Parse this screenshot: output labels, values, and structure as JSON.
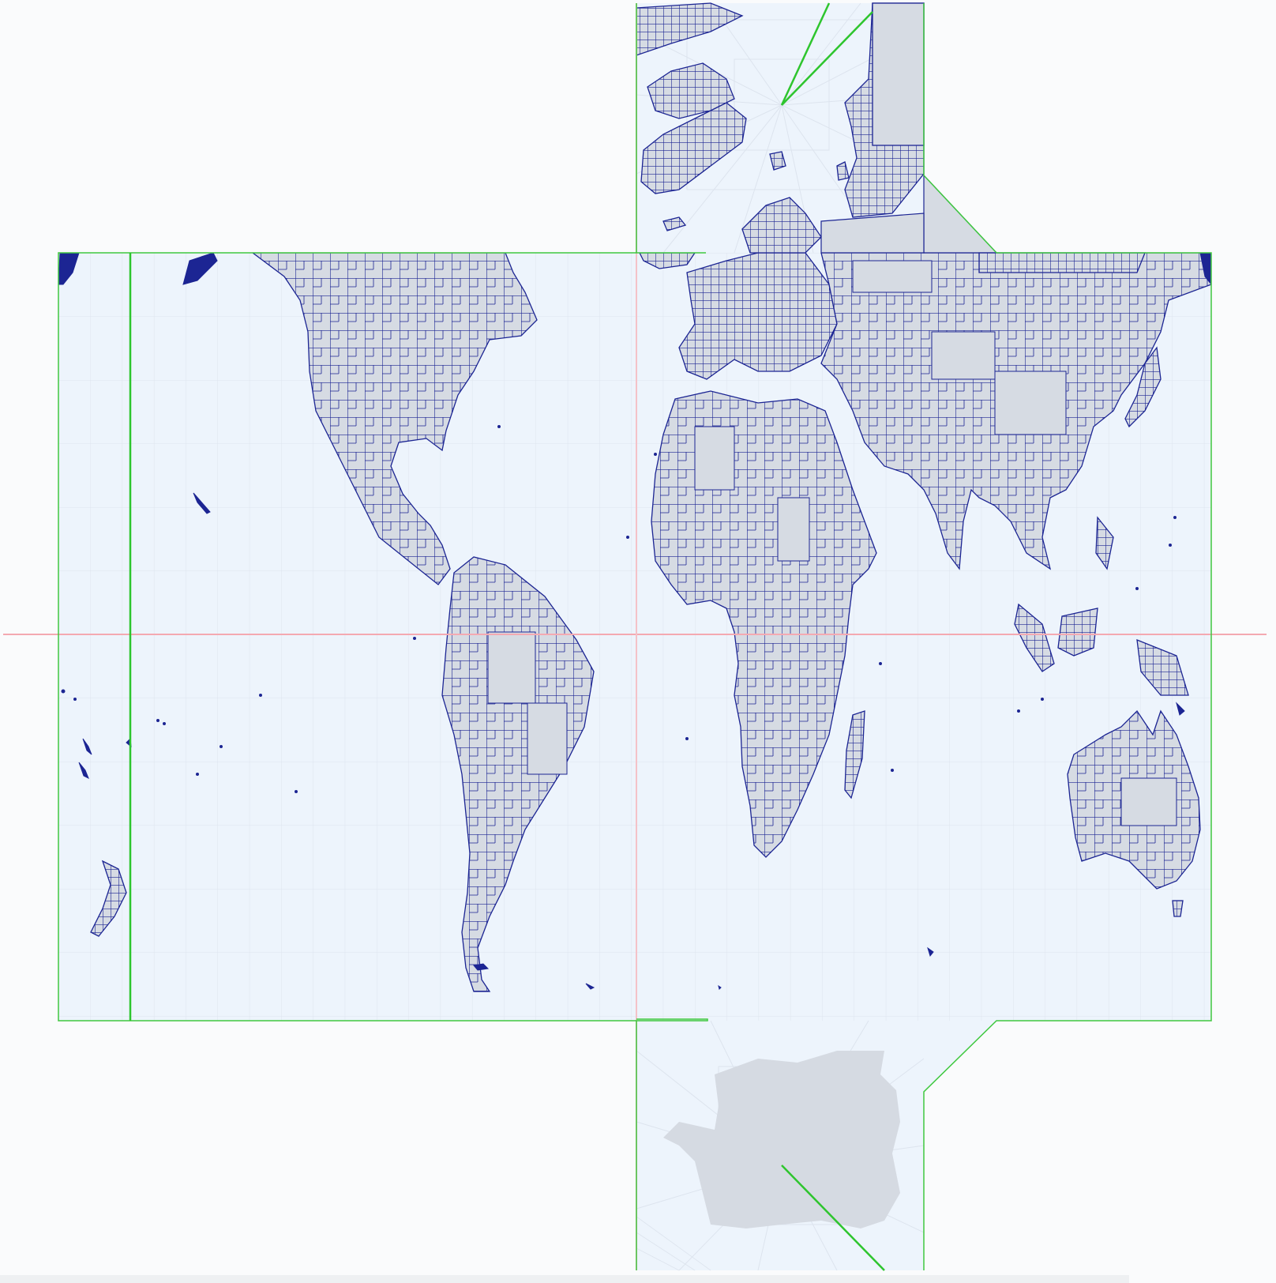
{
  "map": {
    "projection": "cube-face-net",
    "faces": [
      "north-polar",
      "equatorial-band",
      "south-polar"
    ],
    "layers": [
      "graticule",
      "country-borders",
      "quadtree-tiles",
      "tile-seams",
      "equator-line",
      "prime-meridian-line"
    ]
  },
  "colors": {
    "page_background": "#fafbfc",
    "face_fill": "#edf4fc",
    "graticule": "#dde4ee",
    "coastline": "#1c2593",
    "tile_fill": "#d6dbe3",
    "tile_stroke": "#1c2593",
    "face_border": "#3fc83f",
    "seam": "#2ec52e",
    "equator": "#f4a9b1",
    "antarctica_fill": "#d5dae2"
  }
}
